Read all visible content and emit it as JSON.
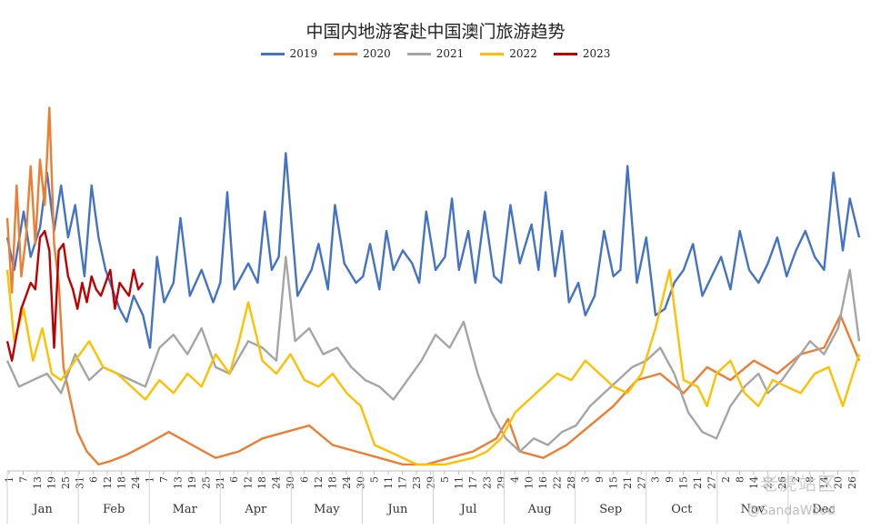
{
  "chart_data": {
    "type": "line",
    "title": "中国内地游客赴中国澳门旅游趋势",
    "xlabel": "",
    "ylabel": "",
    "legend_position": "top",
    "grid": false,
    "x_day_ticks": [
      "1",
      "7",
      "13",
      "19",
      "25",
      "31",
      "6",
      "12",
      "18",
      "24",
      "1",
      "7",
      "13",
      "19",
      "25",
      "31",
      "6",
      "12",
      "18",
      "24",
      "30",
      "6",
      "12",
      "18",
      "24",
      "30",
      "5",
      "11",
      "17",
      "23",
      "29",
      "5",
      "11",
      "17",
      "23",
      "29",
      "4",
      "10",
      "16",
      "22",
      "28",
      "3",
      "9",
      "15",
      "21",
      "27",
      "3",
      "9",
      "15",
      "21",
      "27",
      "2",
      "8",
      "14",
      "20",
      "26",
      "2",
      "8",
      "14",
      "20",
      "26"
    ],
    "month_labels": [
      "Jan",
      "Feb",
      "Mar",
      "Apr",
      "May",
      "Jun",
      "Jul",
      "Aug",
      "Sep",
      "Oct",
      "Nov",
      "Dec"
    ],
    "colors": {
      "2019": "#4472c4",
      "2020": "#ed7d31",
      "2021": "#a5a5a5",
      "2022": "#ffc000",
      "2023": "#c00000"
    },
    "series": [
      {
        "name": "2019",
        "color": "#4472c4",
        "x": [
          1,
          4,
          8,
          11,
          15,
          18,
          21,
          24,
          27,
          30,
          34,
          37,
          40,
          43,
          46,
          49,
          52,
          55,
          59,
          62,
          65,
          68,
          72,
          75,
          79,
          84,
          89,
          92,
          95,
          98,
          101,
          104,
          108,
          111,
          114,
          117,
          120,
          125,
          128,
          131,
          134,
          138,
          141,
          145,
          150,
          153,
          156,
          160,
          163,
          166,
          170,
          174,
          177,
          180,
          184,
          188,
          191,
          194,
          198,
          201,
          205,
          209,
          212,
          216,
          220,
          225,
          228,
          231,
          235,
          238,
          241,
          245,
          248,
          252,
          256,
          260,
          263,
          266,
          270,
          274,
          278,
          282,
          286,
          290,
          294,
          298,
          302,
          306,
          310,
          314,
          318,
          322,
          326,
          330,
          334,
          338,
          342,
          346,
          350,
          354,
          358,
          361,
          365
        ],
        "y": [
          72,
          62,
          80,
          66,
          75,
          92,
          74,
          88,
          72,
          82,
          60,
          88,
          72,
          62,
          56,
          50,
          46,
          54,
          48,
          38,
          66,
          52,
          58,
          78,
          54,
          62,
          52,
          58,
          86,
          56,
          60,
          64,
          58,
          80,
          62,
          66,
          98,
          54,
          58,
          62,
          70,
          56,
          82,
          64,
          58,
          60,
          70,
          56,
          74,
          62,
          68,
          64,
          58,
          80,
          62,
          66,
          84,
          62,
          74,
          58,
          80,
          60,
          58,
          82,
          64,
          76,
          62,
          86,
          60,
          74,
          52,
          58,
          48,
          54,
          74,
          60,
          62,
          94,
          58,
          72,
          48,
          50,
          58,
          62,
          70,
          54,
          60,
          66,
          56,
          74,
          62,
          58,
          64,
          72,
          60,
          68,
          74,
          66,
          62,
          92,
          68,
          84,
          72
        ]
      },
      {
        "name": "2020",
        "color": "#ed7d31",
        "x": [
          1,
          3,
          5,
          7,
          9,
          11,
          13,
          15,
          17,
          19,
          21,
          23,
          25,
          28,
          31,
          35,
          40,
          45,
          52,
          60,
          70,
          80,
          90,
          100,
          110,
          120,
          130,
          140,
          150,
          160,
          170,
          180,
          190,
          200,
          210,
          215,
          220,
          230,
          240,
          250,
          260,
          270,
          280,
          290,
          300,
          310,
          320,
          330,
          340,
          350,
          357,
          365
        ],
        "y": [
          78,
          55,
          88,
          60,
          72,
          94,
          70,
          96,
          82,
          112,
          70,
          58,
          32,
          22,
          12,
          6,
          2,
          3,
          5,
          8,
          12,
          8,
          4,
          6,
          10,
          12,
          14,
          8,
          6,
          4,
          2,
          2,
          4,
          6,
          10,
          16,
          6,
          4,
          8,
          14,
          20,
          28,
          30,
          24,
          32,
          28,
          34,
          30,
          36,
          38,
          48,
          34
        ]
      },
      {
        "name": "2021",
        "color": "#a5a5a5",
        "x": [
          1,
          6,
          12,
          18,
          24,
          30,
          36,
          42,
          48,
          54,
          60,
          66,
          72,
          78,
          84,
          90,
          96,
          104,
          110,
          116,
          120,
          124,
          130,
          136,
          142,
          148,
          154,
          160,
          166,
          172,
          178,
          184,
          190,
          196,
          202,
          208,
          214,
          220,
          226,
          232,
          238,
          244,
          250,
          256,
          262,
          268,
          274,
          280,
          286,
          292,
          298,
          304,
          310,
          316,
          322,
          326,
          332,
          338,
          344,
          350,
          356,
          361,
          365
        ],
        "y": [
          34,
          26,
          28,
          30,
          24,
          36,
          28,
          32,
          30,
          28,
          26,
          38,
          42,
          36,
          44,
          32,
          30,
          40,
          38,
          34,
          66,
          40,
          44,
          36,
          38,
          32,
          28,
          26,
          22,
          28,
          34,
          42,
          38,
          46,
          30,
          18,
          10,
          6,
          10,
          8,
          12,
          14,
          20,
          24,
          28,
          32,
          34,
          38,
          30,
          18,
          12,
          10,
          20,
          26,
          30,
          24,
          28,
          34,
          40,
          36,
          44,
          62,
          40
        ]
      },
      {
        "name": "2022",
        "color": "#ffc000",
        "x": [
          1,
          4,
          8,
          12,
          16,
          20,
          24,
          30,
          36,
          42,
          48,
          54,
          60,
          66,
          72,
          78,
          84,
          90,
          96,
          100,
          104,
          110,
          116,
          122,
          128,
          134,
          140,
          146,
          152,
          158,
          164,
          170,
          176,
          182,
          188,
          194,
          200,
          206,
          212,
          218,
          224,
          230,
          236,
          242,
          248,
          254,
          260,
          266,
          272,
          278,
          284,
          290,
          296,
          300,
          304,
          310,
          316,
          322,
          328,
          334,
          340,
          346,
          352,
          358,
          365
        ],
        "y": [
          62,
          40,
          50,
          34,
          44,
          30,
          28,
          34,
          40,
          32,
          30,
          26,
          22,
          28,
          24,
          30,
          26,
          36,
          30,
          40,
          52,
          34,
          30,
          36,
          28,
          26,
          30,
          24,
          20,
          8,
          6,
          4,
          2,
          2,
          2,
          3,
          4,
          6,
          10,
          18,
          22,
          26,
          30,
          28,
          34,
          30,
          26,
          24,
          30,
          44,
          62,
          28,
          26,
          20,
          30,
          34,
          24,
          20,
          28,
          26,
          24,
          30,
          32,
          20,
          36
        ]
      },
      {
        "name": "2023",
        "color": "#c00000",
        "x": [
          1,
          3,
          5,
          7,
          9,
          11,
          13,
          15,
          17,
          19,
          21,
          23,
          25,
          27,
          29,
          31,
          33,
          35,
          37,
          39,
          41,
          43,
          45,
          47,
          49,
          51,
          53,
          55,
          57,
          59
        ],
        "y": [
          40,
          34,
          42,
          50,
          54,
          58,
          56,
          72,
          74,
          68,
          38,
          68,
          70,
          60,
          56,
          50,
          58,
          52,
          60,
          56,
          54,
          58,
          62,
          50,
          58,
          56,
          54,
          62,
          56,
          58
        ]
      }
    ],
    "xlim": [
      1,
      365
    ],
    "ylim": [
      0,
      120
    ]
  }
}
